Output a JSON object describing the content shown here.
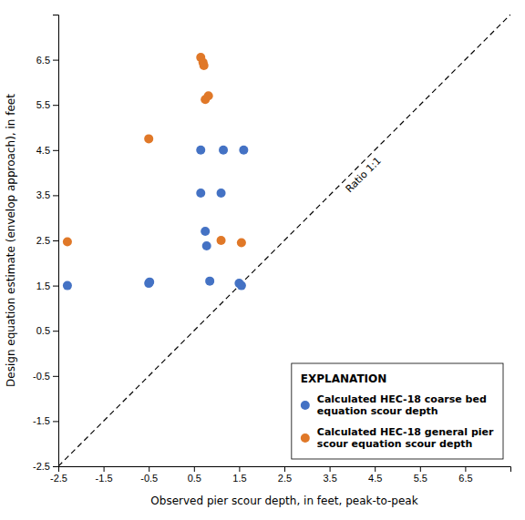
{
  "chart_data": {
    "type": "scatter",
    "xlabel": "Observed pier scour depth, in feet, peak-to-peak",
    "ylabel": "Design equation estimate (envelop approach), in feet",
    "series": [
      {
        "name": "Calculated HEC-18 coarse bed\nequation scour depth",
        "color": "#4472c4",
        "marker": "circle",
        "x": [
          -2.3,
          -0.5,
          -0.48,
          0.65,
          0.65,
          0.75,
          0.78,
          0.85,
          1.1,
          1.15,
          1.5,
          1.55,
          1.6
        ],
        "values": [
          1.5,
          1.55,
          1.58,
          4.5,
          3.55,
          2.7,
          2.38,
          1.6,
          3.55,
          4.5,
          1.55,
          1.5,
          4.5
        ]
      },
      {
        "name": "Calculated HEC-18 general pier\nscour equation scour depth",
        "color": "#e07828",
        "marker": "circle",
        "x": [
          -2.3,
          -0.5,
          0.65,
          0.7,
          0.72,
          0.75,
          0.82,
          1.1,
          1.55
        ],
        "values": [
          2.47,
          4.75,
          6.55,
          6.44,
          6.37,
          5.62,
          5.7,
          2.5,
          2.45
        ]
      }
    ],
    "xlim": [
      -2.5,
      7.5
    ],
    "ylim": [
      -2.5,
      7.5
    ],
    "xticks": [
      -2.5,
      -1.5,
      -0.5,
      0.5,
      1.5,
      2.5,
      3.5,
      4.5,
      5.5,
      6.5
    ],
    "yticks": [
      -2.5,
      -1.5,
      -0.5,
      0.5,
      1.5,
      2.5,
      3.5,
      4.5,
      5.5,
      6.5
    ],
    "grid": false,
    "legend": "lower right",
    "legend_title": "EXPLANATION",
    "annotations": [
      {
        "text": "Ratio 1:1",
        "x": 4.3,
        "y": 3.9
      }
    ]
  }
}
